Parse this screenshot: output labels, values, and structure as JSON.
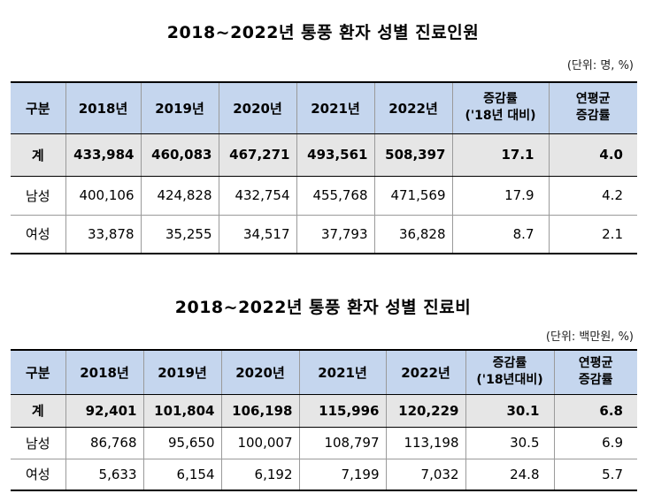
{
  "table1": {
    "title": "2018~2022년 통풍 환자 성별 진료인원",
    "unit": "(단위: 명, %)",
    "headers": {
      "category": "구분",
      "y2018": "2018년",
      "y2019": "2019년",
      "y2020": "2020년",
      "y2021": "2021년",
      "y2022": "2022년",
      "rate_line1": "증감률",
      "rate_line2": "('18년 대비)",
      "avg_line1": "연평균",
      "avg_line2": "증감률"
    },
    "rows": [
      {
        "label": "계",
        "y2018": "433,984",
        "y2019": "460,083",
        "y2020": "467,271",
        "y2021": "493,561",
        "y2022": "508,397",
        "rate": "17.1",
        "avg": "4.0"
      },
      {
        "label": "남성",
        "y2018": "400,106",
        "y2019": "424,828",
        "y2020": "432,754",
        "y2021": "455,768",
        "y2022": "471,569",
        "rate": "17.9",
        "avg": "4.2"
      },
      {
        "label": "여성",
        "y2018": "33,878",
        "y2019": "35,255",
        "y2020": "34,517",
        "y2021": "37,793",
        "y2022": "36,828",
        "rate": "8.7",
        "avg": "2.1"
      }
    ]
  },
  "table2": {
    "title": "2018~2022년 통풍 환자 성별 진료비",
    "unit": "(단위: 백만원, %)",
    "headers": {
      "category": "구분",
      "y2018": "2018년",
      "y2019": "2019년",
      "y2020": "2020년",
      "y2021": "2021년",
      "y2022": "2022년",
      "rate_line1": "증감률",
      "rate_line2": "('18년대비)",
      "avg_line1": "연평균",
      "avg_line2": "증감률"
    },
    "rows": [
      {
        "label": "계",
        "y2018": "92,401",
        "y2019": "101,804",
        "y2020": "106,198",
        "y2021": "115,996",
        "y2022": "120,229",
        "rate": "30.1",
        "avg": "6.8"
      },
      {
        "label": "남성",
        "y2018": "86,768",
        "y2019": "95,650",
        "y2020": "100,007",
        "y2021": "108,797",
        "y2022": "113,198",
        "rate": "30.5",
        "avg": "6.9"
      },
      {
        "label": "여성",
        "y2018": "5,633",
        "y2019": "6,154",
        "y2020": "6,192",
        "y2021": "7,199",
        "y2022": "7,032",
        "rate": "24.8",
        "avg": "5.7"
      }
    ]
  }
}
